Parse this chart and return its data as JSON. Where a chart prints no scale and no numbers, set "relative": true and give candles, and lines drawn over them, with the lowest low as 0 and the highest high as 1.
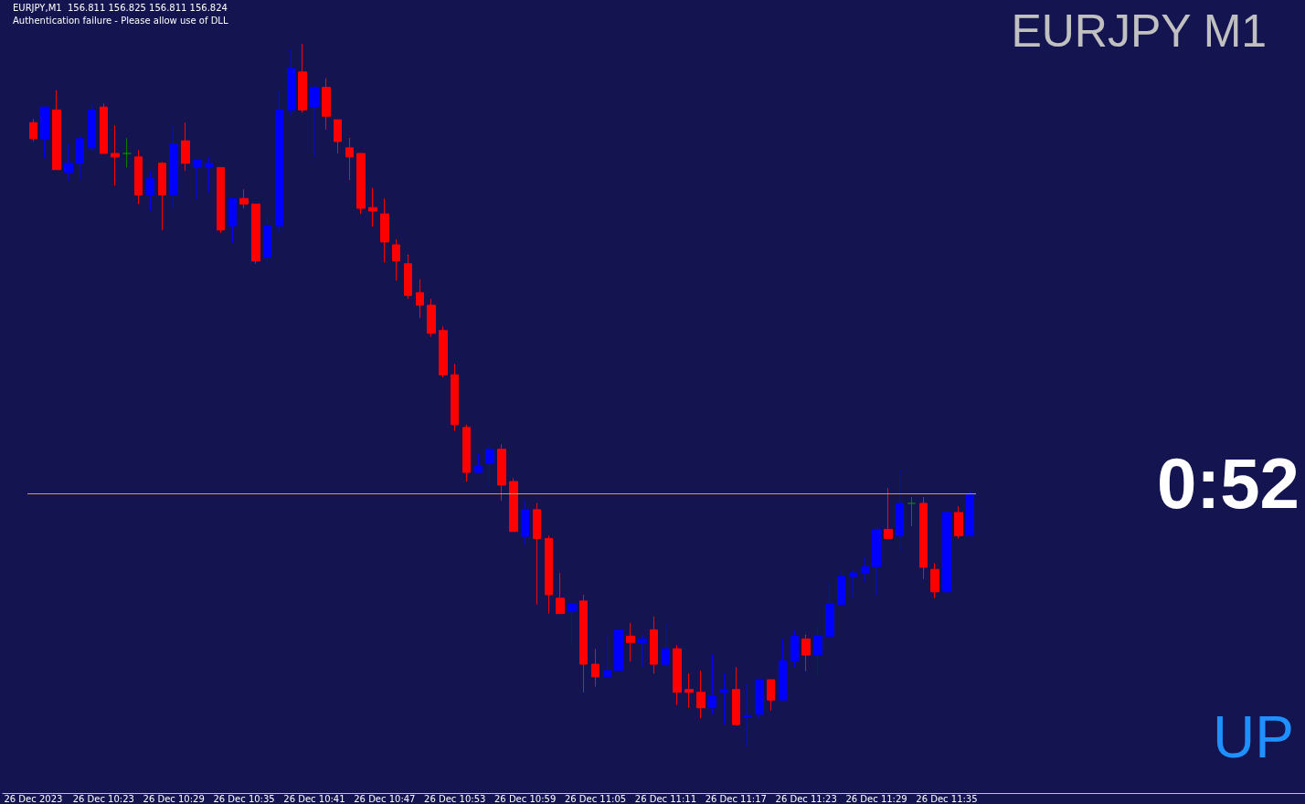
{
  "chart_data": {
    "type": "candlestick",
    "title": "EURJPY M1",
    "subtitle": "EURJPY,M1  156.811 156.825 156.811 156.824",
    "relative": true,
    "tick_labels": "x",
    "annotations": [
      "Authentication failure - Please allow use of DLL",
      "0:52",
      "UP"
    ],
    "categories": [
      "26 Dec 2023",
      null,
      null,
      null,
      null,
      null,
      "26 Dec 10:23",
      null,
      null,
      null,
      null,
      null,
      "26 Dec 10:29",
      null,
      null,
      null,
      null,
      null,
      "26 Dec 10:35",
      null,
      null,
      null,
      null,
      null,
      "26 Dec 10:41",
      null,
      null,
      null,
      null,
      null,
      "26 Dec 10:47",
      null,
      null,
      null,
      null,
      null,
      "26 Dec 10:53",
      null,
      null,
      null,
      null,
      null,
      "26 Dec 10:59",
      null,
      null,
      null,
      null,
      null,
      "26 Dec 11:05",
      null,
      null,
      null,
      null,
      null,
      "26 Dec 11:11",
      null,
      null,
      null,
      null,
      null,
      "26 Dec 11:17",
      null,
      null,
      null,
      null,
      null,
      "26 Dec 11:23",
      null,
      null,
      null,
      null,
      null,
      "26 Dec 11:29",
      null,
      null,
      null,
      null,
      null,
      "26 Dec 11:35",
      null,
      null
    ],
    "ohlc": [
      [
        0.888,
        0.893,
        0.861,
        0.865
      ],
      [
        0.865,
        0.91,
        0.837,
        0.91
      ],
      [
        0.906,
        0.934,
        0.821,
        0.821
      ],
      [
        0.817,
        0.858,
        0.804,
        0.83
      ],
      [
        0.83,
        0.871,
        0.806,
        0.865
      ],
      [
        0.852,
        0.915,
        0.847,
        0.906
      ],
      [
        0.91,
        0.915,
        0.844,
        0.844
      ],
      [
        0.844,
        0.884,
        0.798,
        0.839
      ],
      [
        0.844,
        0.866,
        0.824,
        0.844
      ],
      [
        0.839,
        0.849,
        0.772,
        0.785
      ],
      [
        0.785,
        0.819,
        0.762,
        0.808
      ],
      [
        0.83,
        0.832,
        0.735,
        0.785
      ],
      [
        0.785,
        0.884,
        0.766,
        0.857
      ],
      [
        0.862,
        0.888,
        0.819,
        0.83
      ],
      [
        0.824,
        0.835,
        0.779,
        0.835
      ],
      [
        0.824,
        0.839,
        0.788,
        0.83
      ],
      [
        0.824,
        0.824,
        0.731,
        0.735
      ],
      [
        0.741,
        0.78,
        0.717,
        0.78
      ],
      [
        0.78,
        0.793,
        0.766,
        0.772
      ],
      [
        0.772,
        0.772,
        0.687,
        0.691
      ],
      [
        0.696,
        0.754,
        0.687,
        0.741
      ],
      [
        0.741,
        0.934,
        0.731,
        0.906
      ],
      [
        0.906,
        0.992,
        0.897,
        0.965
      ],
      [
        0.96,
        1.0,
        0.902,
        0.906
      ],
      [
        0.91,
        0.941,
        0.839,
        0.938
      ],
      [
        0.938,
        0.951,
        0.878,
        0.897
      ],
      [
        0.892,
        0.892,
        0.844,
        0.861
      ],
      [
        0.852,
        0.866,
        0.806,
        0.839
      ],
      [
        0.844,
        0.844,
        0.758,
        0.766
      ],
      [
        0.767,
        0.795,
        0.74,
        0.762
      ],
      [
        0.758,
        0.78,
        0.689,
        0.718
      ],
      [
        0.714,
        0.722,
        0.663,
        0.691
      ],
      [
        0.687,
        0.7,
        0.637,
        0.642
      ],
      [
        0.646,
        0.665,
        0.61,
        0.628
      ],
      [
        0.628,
        0.637,
        0.583,
        0.588
      ],
      [
        0.592,
        0.598,
        0.525,
        0.529
      ],
      [
        0.529,
        0.544,
        0.449,
        0.458
      ],
      [
        0.454,
        0.458,
        0.377,
        0.39
      ],
      [
        0.39,
        0.417,
        0.39,
        0.399
      ],
      [
        0.403,
        0.43,
        0.368,
        0.423
      ],
      [
        0.423,
        0.43,
        0.35,
        0.372
      ],
      [
        0.377,
        0.382,
        0.306,
        0.306
      ],
      [
        0.299,
        0.351,
        0.287,
        0.337
      ],
      [
        0.337,
        0.346,
        0.202,
        0.296
      ],
      [
        0.296,
        0.3,
        0.189,
        0.216
      ],
      [
        0.211,
        0.247,
        0.189,
        0.189
      ],
      [
        0.192,
        0.203,
        0.143,
        0.203
      ],
      [
        0.207,
        0.216,
        0.077,
        0.117
      ],
      [
        0.117,
        0.139,
        0.085,
        0.099
      ],
      [
        0.099,
        0.159,
        0.099,
        0.108
      ],
      [
        0.108,
        0.166,
        0.108,
        0.166
      ],
      [
        0.157,
        0.176,
        0.121,
        0.148
      ],
      [
        0.148,
        0.159,
        0.113,
        0.153
      ],
      [
        0.166,
        0.185,
        0.104,
        0.117
      ],
      [
        0.117,
        0.176,
        0.113,
        0.139
      ],
      [
        0.139,
        0.144,
        0.059,
        0.077
      ],
      [
        0.081,
        0.104,
        0.055,
        0.077
      ],
      [
        0.077,
        0.108,
        0.04,
        0.055
      ],
      [
        0.055,
        0.131,
        0.046,
        0.072
      ],
      [
        0.077,
        0.104,
        0.031,
        0.081
      ],
      [
        0.081,
        0.113,
        0.031,
        0.031
      ],
      [
        0.042,
        0.09,
        0,
        0.044
      ],
      [
        0.046,
        0.095,
        0.04,
        0.095
      ],
      [
        0.095,
        0.095,
        0.051,
        0.066
      ],
      [
        0.066,
        0.153,
        0.066,
        0.122
      ],
      [
        0.122,
        0.166,
        0.113,
        0.157
      ],
      [
        0.153,
        0.159,
        0.107,
        0.13
      ],
      [
        0.13,
        0.172,
        0.099,
        0.157
      ],
      [
        0.157,
        0.234,
        0.157,
        0.203
      ],
      [
        0.202,
        0.252,
        0.202,
        0.242
      ],
      [
        0.242,
        0.252,
        0.211,
        0.247
      ],
      [
        0.247,
        0.269,
        0.234,
        0.256
      ],
      [
        0.256,
        0.309,
        0.215,
        0.309
      ],
      [
        0.309,
        0.368,
        0.296,
        0.296
      ],
      [
        0.3,
        0.395,
        0.278,
        0.346
      ],
      [
        0.346,
        0.355,
        0.313,
        0.346
      ],
      [
        0.346,
        0.355,
        0.238,
        0.255
      ],
      [
        0.252,
        0.261,
        0.211,
        0.22
      ],
      [
        0.22,
        0.333,
        0.22,
        0.333
      ],
      [
        0.333,
        0.342,
        0.296,
        0.3
      ],
      [
        0.3,
        0.364,
        0.3,
        0.359
      ]
    ],
    "colors": [
      "#ff0000",
      "#0000ff",
      "#ff0000",
      "#0000ff",
      "#0000ff",
      "#0000ff",
      "#ff0000",
      "#ff0000",
      "#008000",
      "#ff0000",
      "#0000ff",
      "#ff0000",
      "#0000ff",
      "#ff0000",
      "#0000ff",
      "#0000ff",
      "#ff0000",
      "#0000ff",
      "#ff0000",
      "#ff0000",
      "#0000ff",
      "#0000ff",
      "#0000ff",
      "#ff0000",
      "#0000ff",
      "#ff0000",
      "#ff0000",
      "#ff0000",
      "#ff0000",
      "#ff0000",
      "#ff0000",
      "#ff0000",
      "#ff0000",
      "#ff0000",
      "#ff0000",
      "#ff0000",
      "#ff0000",
      "#ff0000",
      "#0000ff",
      "#0000ff",
      "#ff0000",
      "#ff0000",
      "#0000ff",
      "#ff0000",
      "#ff0000",
      "#ff0000",
      "#0000ff",
      "#ff0000",
      "#ff0000",
      "#0000ff",
      "#0000ff",
      "#ff0000",
      "#0000ff",
      "#ff0000",
      "#0000ff",
      "#ff0000",
      "#ff0000",
      "#ff0000",
      "#0000ff",
      "#0000ff",
      "#ff0000",
      "#0000ff",
      "#0000ff",
      "#ff0000",
      "#0000ff",
      "#0000ff",
      "#ff0000",
      "#0000ff",
      "#0000ff",
      "#0000ff",
      "#0000ff",
      "#0000ff",
      "#0000ff",
      "#ff0000",
      "#0000ff",
      "#008000",
      "#ff0000",
      "#ff0000",
      "#0000ff",
      "#ff0000",
      "#0000ff"
    ],
    "ref_lines": [
      {
        "axis": "y",
        "value": 0.359,
        "color": "#c8a050"
      }
    ]
  }
}
